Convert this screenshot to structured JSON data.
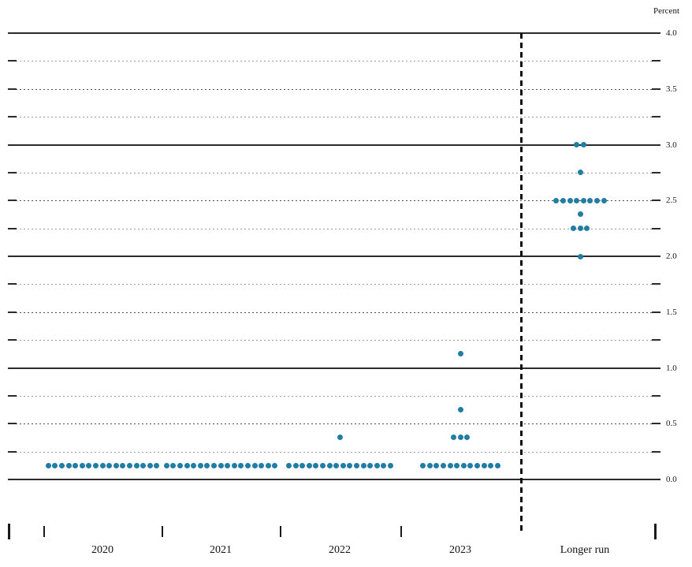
{
  "chart_data": {
    "type": "scatter",
    "title": "",
    "ylabel": "Percent",
    "ylim": [
      0.0,
      4.0
    ],
    "ytick_interval": 0.5,
    "ytick_labels": [
      "0.0",
      "0.5",
      "1.0",
      "1.5",
      "2.0",
      "2.5",
      "3.0",
      "3.5",
      "4.0"
    ],
    "grid": {
      "interval": 0.25,
      "solid_at": [
        0.0,
        1.0,
        2.0,
        3.0,
        4.0
      ],
      "dotted_between": true
    },
    "categories": [
      "2020",
      "2021",
      "2022",
      "2023",
      "Longer run"
    ],
    "series": [
      {
        "category": "2020",
        "dots": [
          {
            "rate": 0.125,
            "count": 17
          }
        ]
      },
      {
        "category": "2021",
        "dots": [
          {
            "rate": 0.125,
            "count": 17
          }
        ]
      },
      {
        "category": "2022",
        "dots": [
          {
            "rate": 0.125,
            "count": 16
          },
          {
            "rate": 0.375,
            "count": 1
          }
        ]
      },
      {
        "category": "2023",
        "dots": [
          {
            "rate": 0.125,
            "count": 12
          },
          {
            "rate": 0.375,
            "count": 3
          },
          {
            "rate": 0.625,
            "count": 1
          },
          {
            "rate": 1.125,
            "count": 1
          }
        ]
      },
      {
        "category": "Longer run",
        "dots": [
          {
            "rate": 2.0,
            "count": 1
          },
          {
            "rate": 2.25,
            "count": 3
          },
          {
            "rate": 2.375,
            "count": 1
          },
          {
            "rate": 2.5,
            "count": 8
          },
          {
            "rate": 2.75,
            "count": 1
          },
          {
            "rate": 3.0,
            "count": 2
          }
        ]
      }
    ],
    "dot_color": "#217da4",
    "separator": {
      "after_category": "2023",
      "style": "dashed"
    },
    "legend": "none"
  }
}
